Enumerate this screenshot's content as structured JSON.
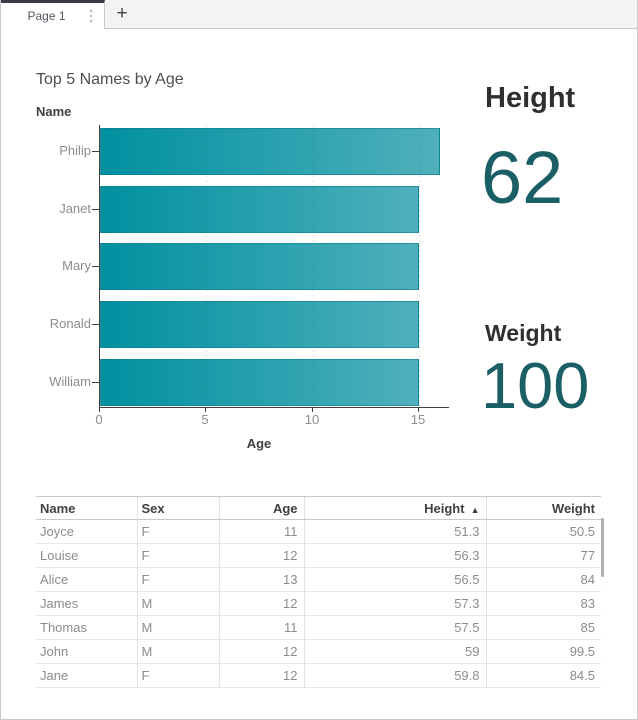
{
  "tab_bar": {
    "active_tab_label": "Page 1",
    "tab_menu_icon": "vertical-dots-icon",
    "add_page_icon": "plus-icon"
  },
  "chart_data": {
    "type": "bar",
    "orientation": "horizontal",
    "title": "Top 5 Names by Age",
    "ylabel": "Name",
    "xlabel": "Age",
    "categories": [
      "Philip",
      "Janet",
      "Mary",
      "Ronald",
      "William"
    ],
    "values": [
      16,
      15,
      15,
      15,
      15
    ],
    "x_ticks": [
      0,
      5,
      10,
      15
    ],
    "xlim": [
      0,
      16.5
    ],
    "grid": "dashed-vertical",
    "legend": "none"
  },
  "kpis": [
    {
      "label": "Height",
      "value": "62"
    },
    {
      "label": "Weight",
      "value": "100"
    }
  ],
  "table": {
    "columns": [
      {
        "label": "Name",
        "align": "left"
      },
      {
        "label": "Sex",
        "align": "left"
      },
      {
        "label": "Age",
        "align": "right"
      },
      {
        "label": "Height",
        "align": "right",
        "sorted": "asc"
      },
      {
        "label": "Weight",
        "align": "right"
      }
    ],
    "sort_indicator": "▲",
    "rows": [
      [
        "Joyce",
        "F",
        "11",
        "51.3",
        "50.5"
      ],
      [
        "Louise",
        "F",
        "12",
        "56.3",
        "77"
      ],
      [
        "Alice",
        "F",
        "13",
        "56.5",
        "84"
      ],
      [
        "James",
        "M",
        "12",
        "57.3",
        "83"
      ],
      [
        "Thomas",
        "M",
        "11",
        "57.5",
        "85"
      ],
      [
        "John",
        "M",
        "12",
        "59",
        "99.5"
      ],
      [
        "Jane",
        "F",
        "12",
        "59.8",
        "84.5"
      ]
    ]
  },
  "colors": {
    "bar_gradient_start": "#0090a0",
    "bar_gradient_end": "#4fb0bb",
    "kpi_value": "#1b5f66",
    "tab_accent": "#3a3b44",
    "axis_line": "#3f3f3f"
  }
}
